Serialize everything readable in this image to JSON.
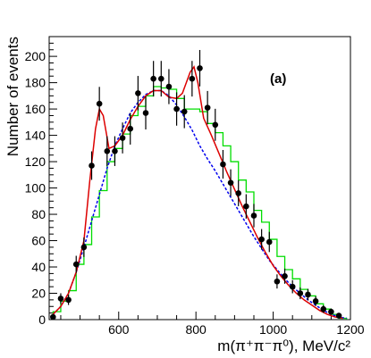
{
  "chart_data": {
    "type": "scatter",
    "panel_label": "(a)",
    "xlabel": "m(π⁺π⁻π⁰), MeV/c²",
    "ylabel": "Number of events",
    "xlim": [
      420,
      1200
    ],
    "ylim": [
      0,
      215
    ],
    "x_ticks": [
      600,
      800,
      1000,
      1200
    ],
    "y_ticks": [
      0,
      20,
      40,
      60,
      80,
      100,
      120,
      140,
      160,
      180,
      200
    ],
    "grid": false,
    "legend": "none",
    "series": [
      {
        "style": "points with error bars",
        "color": "#000000",
        "x": [
          430,
          450,
          470,
          490,
          510,
          530,
          550,
          570,
          590,
          610,
          630,
          650,
          670,
          690,
          710,
          730,
          750,
          770,
          790,
          810,
          830,
          850,
          870,
          890,
          910,
          930,
          950,
          970,
          990,
          1010,
          1030,
          1050,
          1070,
          1090,
          1110,
          1130,
          1150,
          1170
        ],
        "y": [
          2,
          16,
          15,
          42,
          55,
          117,
          164,
          128,
          128,
          138,
          145,
          172,
          157,
          183,
          183,
          177,
          160,
          158,
          183,
          191,
          161,
          148,
          118,
          104,
          96,
          86,
          79,
          61,
          59,
          29,
          33,
          25,
          20,
          19,
          14,
          8,
          6,
          3
        ]
      },
      {
        "style": "step histogram",
        "color": "#00dd00",
        "x": [
          440,
          460,
          480,
          500,
          520,
          540,
          560,
          580,
          600,
          620,
          640,
          660,
          680,
          700,
          720,
          740,
          760,
          780,
          800,
          820,
          840,
          860,
          880,
          900,
          920,
          940,
          960,
          980,
          1000,
          1020,
          1040,
          1060,
          1080,
          1100,
          1120,
          1140,
          1160,
          1180
        ],
        "y": [
          6,
          14,
          22,
          42,
          57,
          78,
          98,
          120,
          130,
          141,
          155,
          162,
          170,
          177,
          176,
          175,
          168,
          160,
          160,
          158,
          149,
          142,
          132,
          120,
          106,
          97,
          83,
          74,
          61,
          48,
          38,
          31,
          23,
          18,
          12,
          8,
          4,
          1
        ]
      },
      {
        "style": "solid curve",
        "color": "#dd0000",
        "x": [
          430,
          450,
          470,
          490,
          510,
          525,
          540,
          550,
          560,
          575,
          590,
          610,
          630,
          650,
          670,
          690,
          710,
          730,
          750,
          765,
          775,
          785,
          795,
          805,
          820,
          840,
          860,
          880,
          900,
          920,
          940,
          960,
          980,
          1000,
          1020,
          1040,
          1060,
          1080,
          1100,
          1120,
          1140,
          1160,
          1180
        ],
        "y": [
          4,
          10,
          20,
          36,
          60,
          105,
          145,
          160,
          155,
          130,
          132,
          140,
          152,
          162,
          170,
          174,
          174,
          169,
          168,
          172,
          180,
          188,
          192,
          180,
          153,
          140,
          126,
          112,
          99,
          86,
          74,
          62,
          51,
          41,
          33,
          26,
          20,
          15,
          11,
          7,
          4,
          2,
          1
        ]
      },
      {
        "style": "dashed curve",
        "color": "#0000ee",
        "x": [
          430,
          450,
          470,
          490,
          510,
          530,
          550,
          570,
          590,
          610,
          630,
          650,
          670,
          690,
          710,
          730,
          750,
          770,
          790,
          810,
          830,
          850,
          870,
          890,
          910,
          930,
          950,
          970,
          990,
          1010,
          1030,
          1050,
          1070,
          1090,
          1110,
          1130,
          1150,
          1170,
          1190
        ],
        "y": [
          4,
          10,
          20,
          36,
          55,
          75,
          95,
          115,
          132,
          145,
          157,
          165,
          171,
          174,
          174,
          170,
          163,
          154,
          144,
          132,
          122,
          113,
          103,
          93,
          83,
          73,
          63,
          54,
          45,
          38,
          31,
          25,
          20,
          15,
          11,
          7,
          4,
          2,
          1
        ]
      }
    ]
  }
}
